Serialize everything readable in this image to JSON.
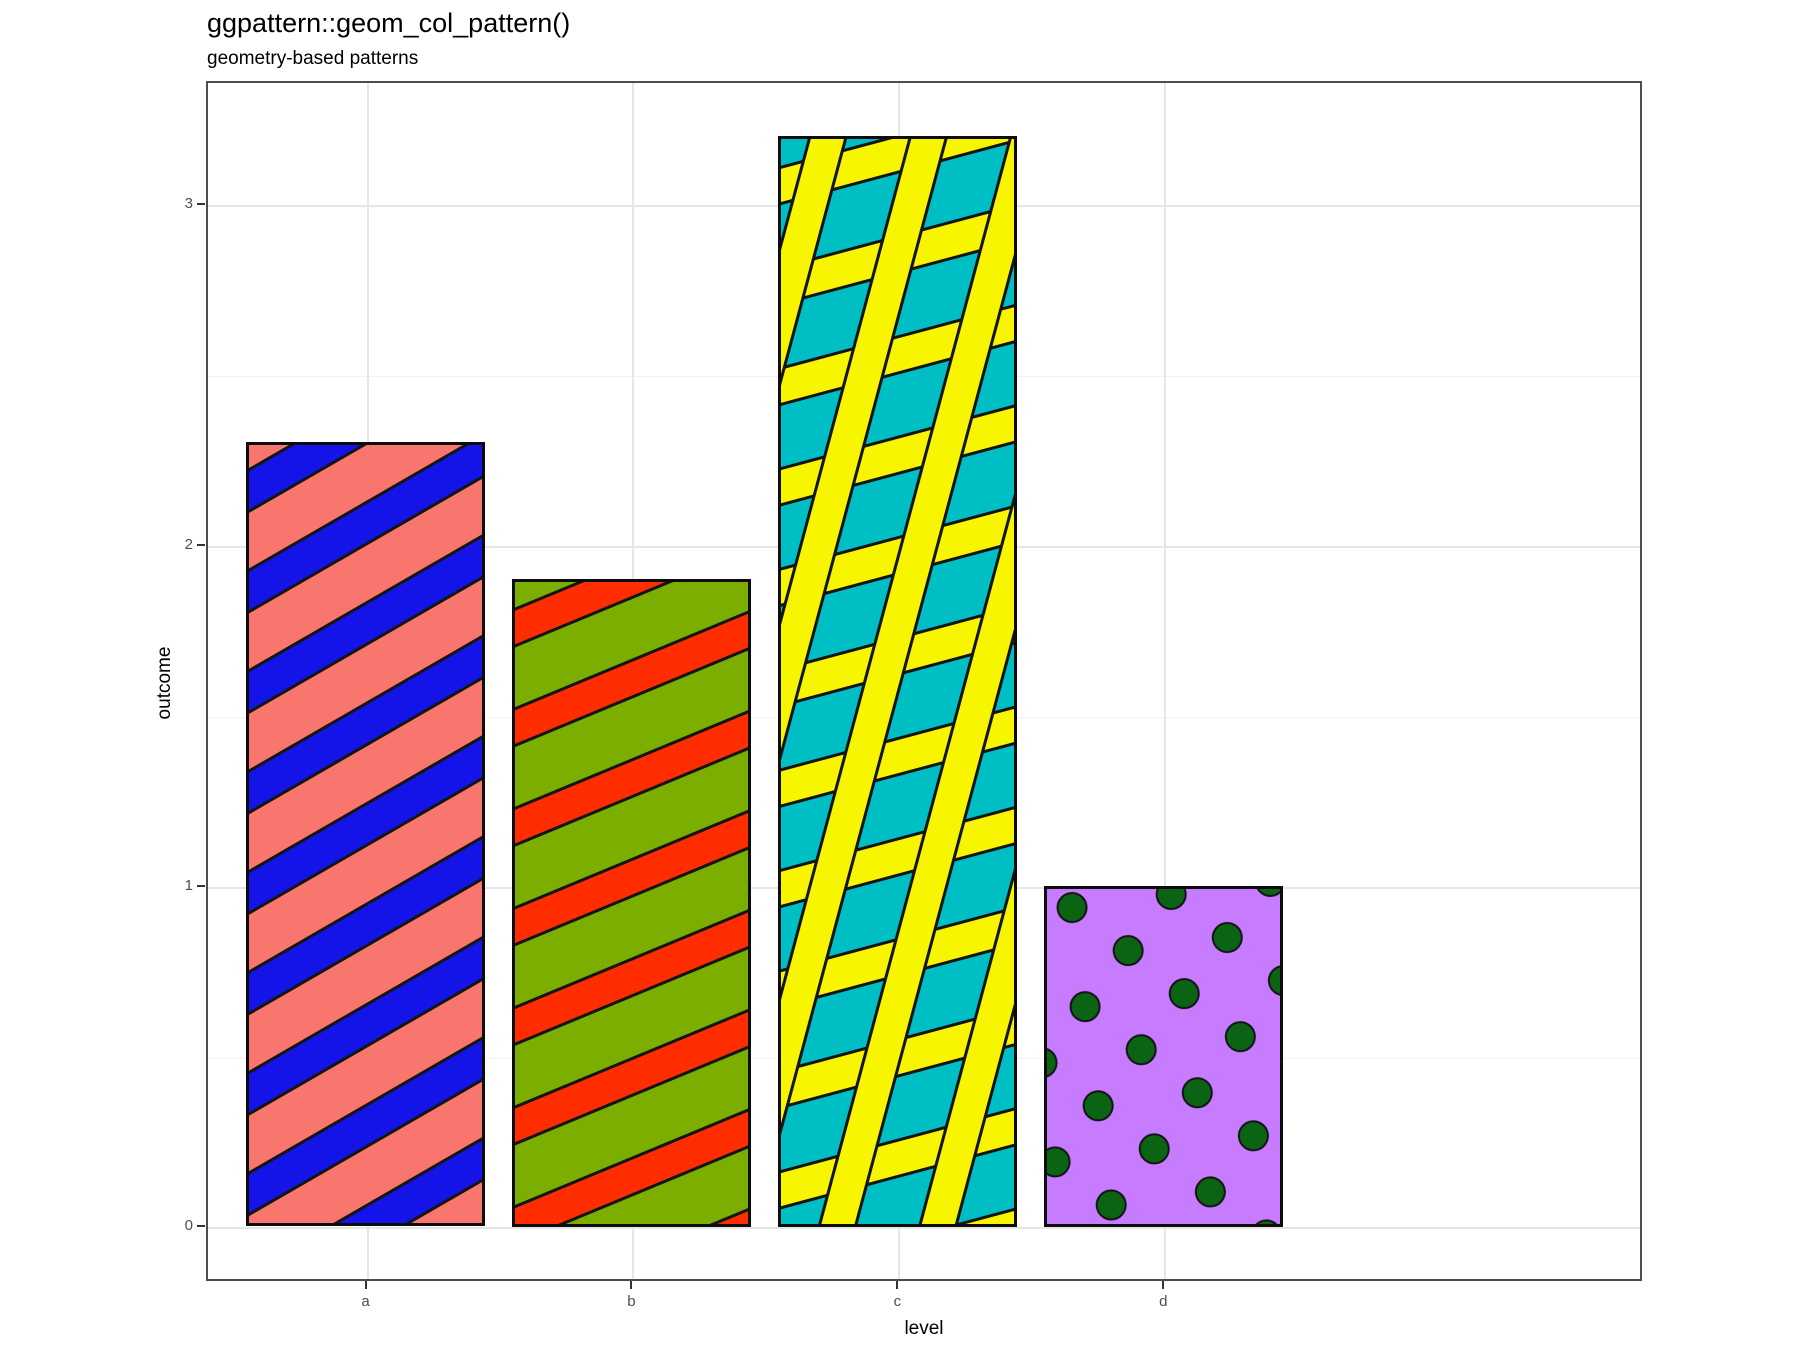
{
  "header": {
    "title": "ggpattern::geom_col_pattern()",
    "subtitle": "geometry-based patterns"
  },
  "axes": {
    "x_label": "level",
    "y_label": "outcome",
    "x_ticks": [
      "a",
      "b",
      "c",
      "d"
    ],
    "y_ticks": [
      "0",
      "1",
      "2",
      "3"
    ]
  },
  "colors": {
    "panel_border": "#4d4d4d",
    "grid_major": "#e6e6e6",
    "grid_minor": "#f2f2f2",
    "tick_text": "#4d4d4d",
    "bar_outline": "#0d0d0d",
    "pattern_outline": "#141414"
  },
  "chart_data": {
    "type": "bar",
    "title": "ggpattern::geom_col_pattern()",
    "subtitle": "geometry-based patterns",
    "xlabel": "level",
    "ylabel": "outcome",
    "categories": [
      "a",
      "b",
      "c",
      "d"
    ],
    "values": [
      2.3,
      1.9,
      3.2,
      1.0
    ],
    "ylim": [
      -0.16,
      3.36
    ],
    "yticks": [
      0,
      1,
      2,
      3
    ],
    "yticks_minor": [
      0.5,
      1.5,
      2.5
    ],
    "grid": true,
    "legend": "none",
    "bars": [
      {
        "label": "a",
        "value": 2.3,
        "pattern": "stripe",
        "fill": "#F8766D",
        "pattern_fill": "#1414E8",
        "pattern_angle": 30
      },
      {
        "label": "b",
        "value": 1.9,
        "pattern": "stripe",
        "fill": "#7CAE00",
        "pattern_fill": "#FF2D00",
        "pattern_angle": 22.5
      },
      {
        "label": "c",
        "value": 3.2,
        "pattern": "crosshatch",
        "fill": "#00BFC4",
        "pattern_fill": "#F7F500",
        "pattern_angle": 15
      },
      {
        "label": "d",
        "value": 1.0,
        "pattern": "circle",
        "fill": "#C77CFF",
        "pattern_fill": "#0A6414",
        "pattern_angle": 7.5
      }
    ]
  }
}
